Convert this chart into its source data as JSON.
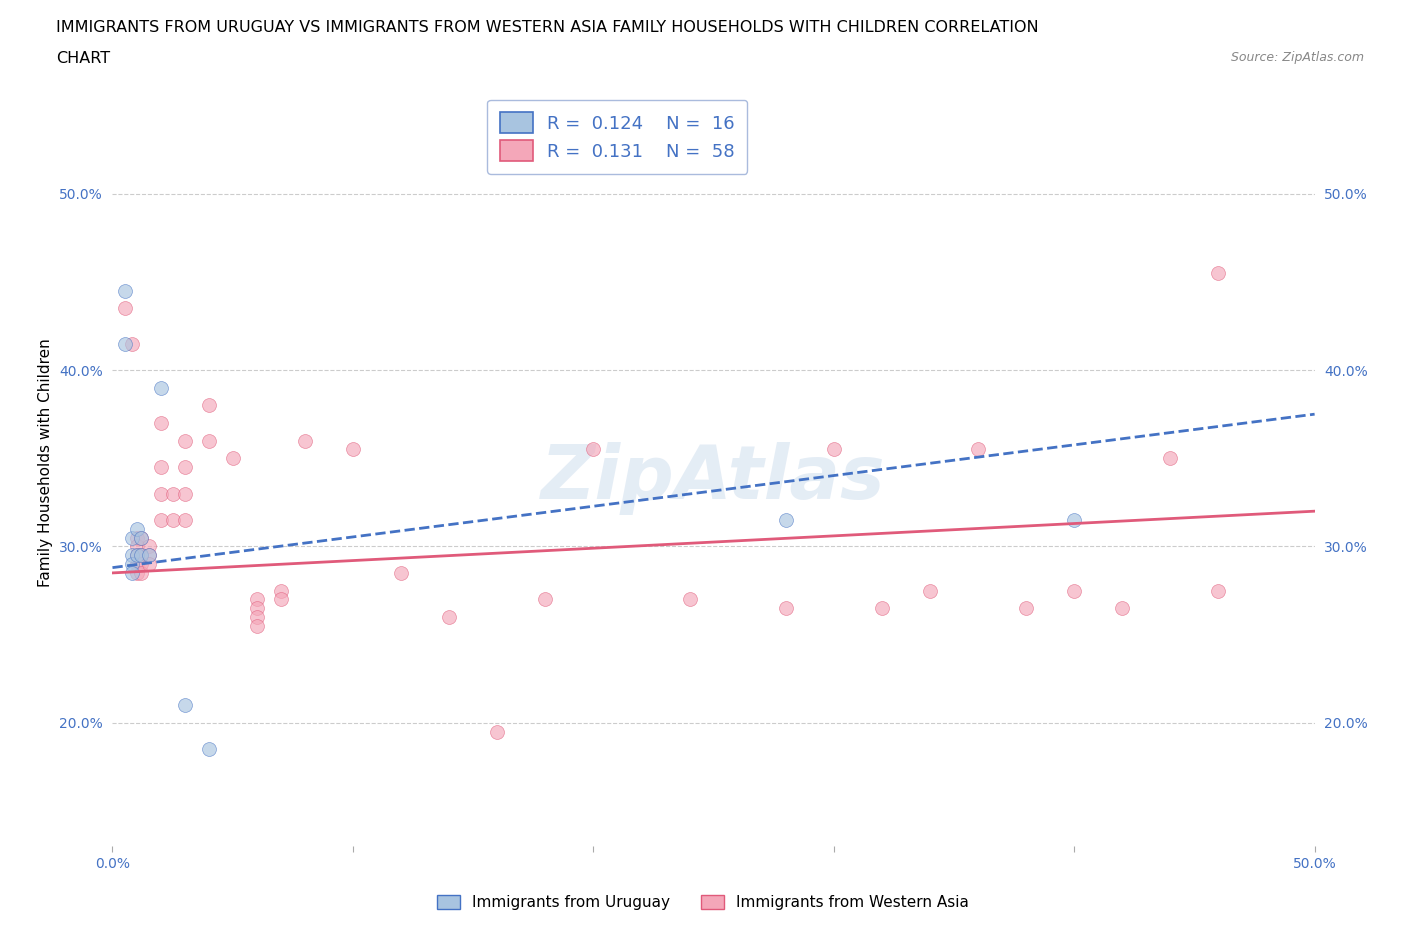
{
  "title_line1": "IMMIGRANTS FROM URUGUAY VS IMMIGRANTS FROM WESTERN ASIA FAMILY HOUSEHOLDS WITH CHILDREN CORRELATION",
  "title_line2": "CHART",
  "source": "Source: ZipAtlas.com",
  "ylabel": "Family Households with Children",
  "xlim": [
    0.0,
    0.5
  ],
  "ylim": [
    0.13,
    0.565
  ],
  "xticks": [
    0.0,
    0.1,
    0.2,
    0.3,
    0.4,
    0.5
  ],
  "xticklabels": [
    "0.0%",
    "",
    "",
    "",
    "",
    "50.0%"
  ],
  "yticks": [
    0.2,
    0.3,
    0.4,
    0.5
  ],
  "yticklabels": [
    "20.0%",
    "30.0%",
    "40.0%",
    "50.0%"
  ],
  "color_uruguay": "#a8c4e0",
  "color_western_asia": "#f4a7b9",
  "line_color_uruguay": "#4472c4",
  "line_color_western_asia": "#e05a7a",
  "grid_color": "#cccccc",
  "background_color": "#ffffff",
  "tick_color": "#4472c4",
  "uruguay_scatter": [
    [
      0.005,
      0.445
    ],
    [
      0.005,
      0.415
    ],
    [
      0.008,
      0.305
    ],
    [
      0.008,
      0.295
    ],
    [
      0.008,
      0.29
    ],
    [
      0.008,
      0.285
    ],
    [
      0.01,
      0.31
    ],
    [
      0.01,
      0.295
    ],
    [
      0.012,
      0.305
    ],
    [
      0.012,
      0.295
    ],
    [
      0.015,
      0.295
    ],
    [
      0.02,
      0.39
    ],
    [
      0.03,
      0.21
    ],
    [
      0.04,
      0.185
    ],
    [
      0.28,
      0.315
    ],
    [
      0.4,
      0.315
    ]
  ],
  "western_asia_scatter": [
    [
      0.005,
      0.435
    ],
    [
      0.008,
      0.415
    ],
    [
      0.01,
      0.305
    ],
    [
      0.01,
      0.3
    ],
    [
      0.01,
      0.295
    ],
    [
      0.01,
      0.29
    ],
    [
      0.01,
      0.285
    ],
    [
      0.012,
      0.305
    ],
    [
      0.012,
      0.295
    ],
    [
      0.012,
      0.29
    ],
    [
      0.012,
      0.285
    ],
    [
      0.015,
      0.3
    ],
    [
      0.015,
      0.295
    ],
    [
      0.015,
      0.29
    ],
    [
      0.02,
      0.37
    ],
    [
      0.02,
      0.345
    ],
    [
      0.02,
      0.33
    ],
    [
      0.02,
      0.315
    ],
    [
      0.025,
      0.33
    ],
    [
      0.025,
      0.315
    ],
    [
      0.03,
      0.36
    ],
    [
      0.03,
      0.345
    ],
    [
      0.03,
      0.33
    ],
    [
      0.03,
      0.315
    ],
    [
      0.04,
      0.38
    ],
    [
      0.04,
      0.36
    ],
    [
      0.05,
      0.35
    ],
    [
      0.06,
      0.27
    ],
    [
      0.06,
      0.265
    ],
    [
      0.06,
      0.26
    ],
    [
      0.06,
      0.255
    ],
    [
      0.07,
      0.275
    ],
    [
      0.07,
      0.27
    ],
    [
      0.08,
      0.36
    ],
    [
      0.1,
      0.355
    ],
    [
      0.12,
      0.285
    ],
    [
      0.14,
      0.26
    ],
    [
      0.16,
      0.195
    ],
    [
      0.18,
      0.27
    ],
    [
      0.2,
      0.355
    ],
    [
      0.24,
      0.27
    ],
    [
      0.28,
      0.265
    ],
    [
      0.3,
      0.355
    ],
    [
      0.32,
      0.265
    ],
    [
      0.34,
      0.275
    ],
    [
      0.36,
      0.355
    ],
    [
      0.38,
      0.265
    ],
    [
      0.4,
      0.275
    ],
    [
      0.42,
      0.265
    ],
    [
      0.44,
      0.35
    ],
    [
      0.46,
      0.275
    ],
    [
      0.46,
      0.455
    ]
  ],
  "uruguay_trend_x": [
    0.0,
    0.5
  ],
  "uruguay_trend_y": [
    0.288,
    0.375
  ],
  "western_asia_trend_x": [
    0.0,
    0.5
  ],
  "western_asia_trend_y": [
    0.285,
    0.32
  ],
  "marker_size": 100,
  "marker_alpha": 0.65,
  "title_fontsize": 11.5,
  "axis_label_fontsize": 11,
  "tick_fontsize": 10,
  "legend_fontsize": 13
}
